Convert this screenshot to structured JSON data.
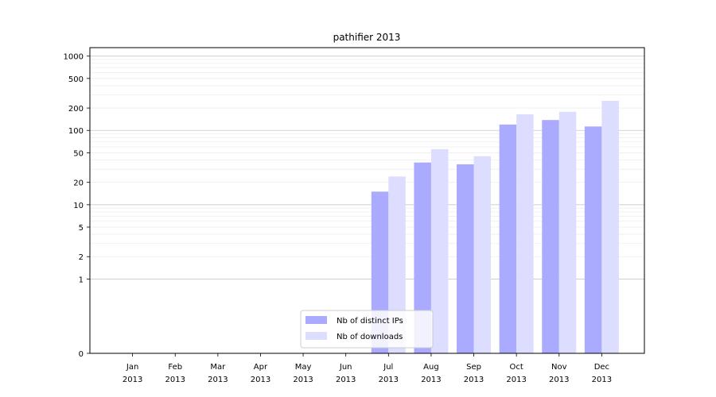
{
  "chart_data": {
    "type": "bar",
    "title": "pathifier 2013",
    "xlabel": "",
    "ylabel": "",
    "yscale": "symlog",
    "ylim": [
      0,
      1300
    ],
    "yticks": [
      0,
      1,
      2,
      5,
      10,
      20,
      50,
      100,
      200,
      500,
      1000
    ],
    "grid": true,
    "legend_position": "bottom-center",
    "categories": [
      [
        "Jan",
        "2013"
      ],
      [
        "Feb",
        "2013"
      ],
      [
        "Mar",
        "2013"
      ],
      [
        "Apr",
        "2013"
      ],
      [
        "May",
        "2013"
      ],
      [
        "Jun",
        "2013"
      ],
      [
        "Jul",
        "2013"
      ],
      [
        "Aug",
        "2013"
      ],
      [
        "Sep",
        "2013"
      ],
      [
        "Oct",
        "2013"
      ],
      [
        "Nov",
        "2013"
      ],
      [
        "Dec",
        "2013"
      ]
    ],
    "series": [
      {
        "name": "Nb of distinct IPs",
        "color": "#aaaaff",
        "values": [
          0,
          0,
          0,
          0,
          0,
          0,
          15,
          37,
          35,
          120,
          138,
          113
        ]
      },
      {
        "name": "Nb of downloads",
        "color": "#ddddff",
        "values": [
          0,
          0,
          0,
          0,
          0,
          0,
          24,
          56,
          45,
          165,
          178,
          250
        ]
      }
    ]
  }
}
